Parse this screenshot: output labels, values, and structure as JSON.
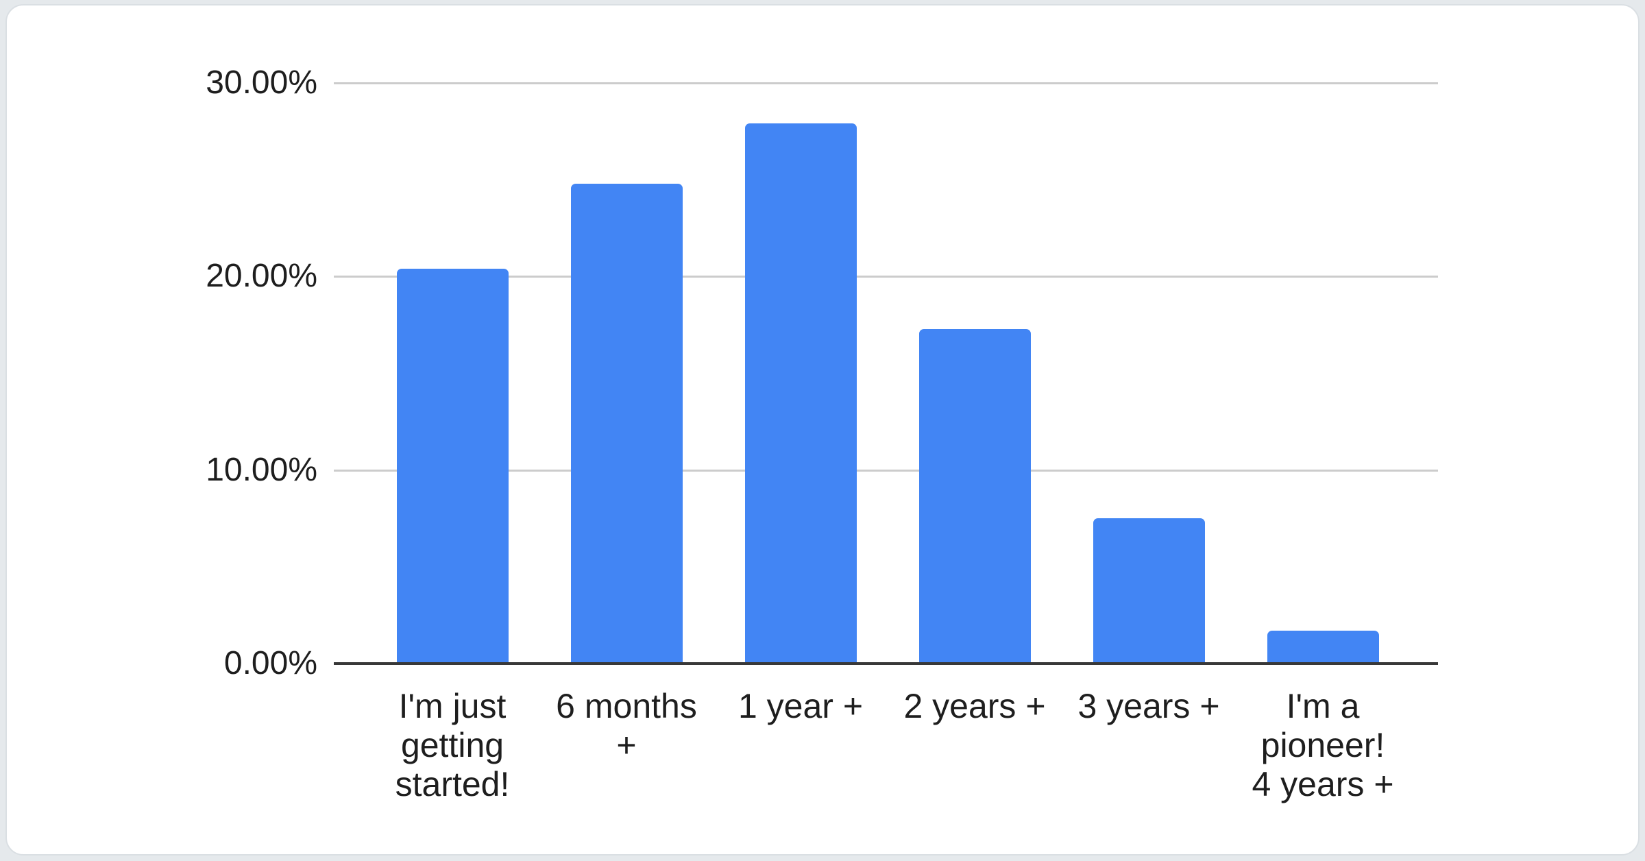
{
  "page": {
    "background_color": "#e5e9ec",
    "card_background_color": "#ffffff"
  },
  "chart_data": {
    "type": "bar",
    "title": "",
    "xlabel": "",
    "ylabel": "",
    "legend": "none",
    "grid": true,
    "ylim": [
      0,
      30
    ],
    "categories": [
      "I'm just getting started!",
      "6 months +",
      "1 year +",
      "2 years +",
      "3 years +",
      "I'm a pioneer! 4 years +"
    ],
    "category_label_lines": [
      [
        "I'm just",
        "getting",
        "started!"
      ],
      [
        "6 months",
        "+"
      ],
      [
        "1 year +"
      ],
      [
        "2 years +"
      ],
      [
        "3 years +"
      ],
      [
        "I'm a",
        "pioneer!",
        "4 years +"
      ]
    ],
    "values": [
      20.4,
      24.8,
      27.9,
      17.3,
      7.5,
      1.7
    ],
    "value_unit": "percent",
    "y_ticks": [
      {
        "value": 0,
        "label": "0.00%"
      },
      {
        "value": 10,
        "label": "10.00%"
      },
      {
        "value": 20,
        "label": "20.00%"
      },
      {
        "value": 30,
        "label": "30.00%"
      }
    ],
    "bar_color": "#4285f4",
    "gridline_color": "#cccccc",
    "axis_line_color": "#383838",
    "text_color": "#1e1e1e"
  }
}
